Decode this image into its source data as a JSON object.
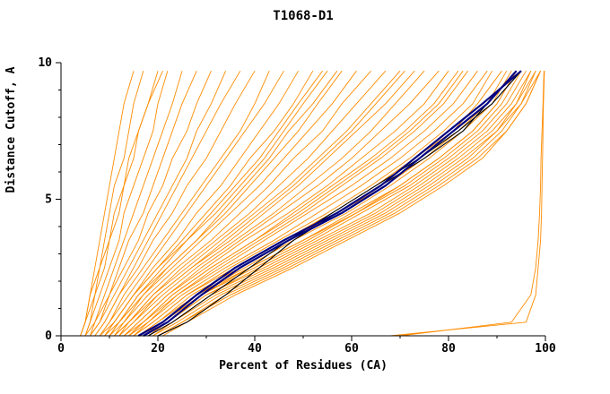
{
  "title": "T1068-D1",
  "chart_data": {
    "type": "line",
    "title": "T1068-D1",
    "xlabel": "Percent of Residues (CA)",
    "ylabel": "Distance Cutoff, A",
    "xlim": [
      0,
      100
    ],
    "ylim": [
      0,
      10
    ],
    "x_ticks": [
      0,
      20,
      40,
      60,
      80,
      100
    ],
    "y_ticks": [
      0,
      5,
      10
    ],
    "x_minor_step": 10,
    "y_minor_step": 1,
    "grid": false,
    "legend": "none",
    "colors": {
      "predictions": "#ff8c00",
      "highlight": "#000080",
      "reference": "#000000",
      "background": "#ffffff"
    },
    "y_anchors": [
      0,
      0.5,
      1.5,
      2.5,
      3.5,
      4.5,
      5.5,
      6.5,
      7.5,
      8.5,
      9.7
    ],
    "series": {
      "orange_curves": [
        [
          4,
          5,
          6,
          7,
          8,
          9,
          10,
          11,
          12,
          13,
          15
        ],
        [
          4,
          5,
          6,
          8,
          9,
          10,
          11,
          13,
          14,
          15,
          17
        ],
        [
          4,
          5,
          7,
          8,
          10,
          11,
          13,
          14,
          16,
          18,
          21
        ],
        [
          5,
          6,
          7,
          9,
          10,
          12,
          13,
          15,
          16,
          18,
          20
        ],
        [
          5,
          6,
          8,
          10,
          12,
          13,
          15,
          17,
          19,
          20,
          22
        ],
        [
          5,
          7,
          9,
          11,
          13,
          15,
          17,
          19,
          21,
          23,
          25
        ],
        [
          6,
          7,
          10,
          12,
          14,
          17,
          19,
          21,
          23,
          25,
          28
        ],
        [
          6,
          8,
          10,
          13,
          16,
          18,
          21,
          23,
          26,
          28,
          31
        ],
        [
          6,
          8,
          11,
          14,
          17,
          20,
          23,
          26,
          28,
          31,
          34
        ],
        [
          7,
          9,
          12,
          15,
          18,
          21,
          24,
          27,
          30,
          33,
          37
        ],
        [
          7,
          9,
          12,
          16,
          19,
          23,
          26,
          30,
          33,
          36,
          40
        ],
        [
          8,
          10,
          13,
          17,
          21,
          25,
          29,
          33,
          37,
          40,
          43
        ],
        [
          8,
          10,
          14,
          18,
          22,
          26,
          30,
          34,
          38,
          42,
          46
        ],
        [
          8,
          11,
          15,
          20,
          26,
          31,
          36,
          41,
          45,
          49,
          54
        ],
        [
          9,
          11,
          15,
          19,
          24,
          28,
          33,
          37,
          41,
          45,
          49
        ],
        [
          9,
          11,
          15,
          20,
          25,
          30,
          35,
          39,
          44,
          48,
          52
        ],
        [
          9,
          12,
          16,
          22,
          28,
          33,
          38,
          43,
          47,
          52,
          57
        ],
        [
          10,
          12,
          16,
          21,
          26,
          32,
          37,
          42,
          46,
          50,
          55
        ],
        [
          10,
          12,
          17,
          22,
          28,
          34,
          39,
          44,
          49,
          53,
          58
        ],
        [
          10,
          13,
          17,
          23,
          29,
          35,
          41,
          46,
          51,
          56,
          61
        ],
        [
          11,
          13,
          18,
          24,
          31,
          37,
          43,
          48,
          54,
          58,
          64
        ],
        [
          11,
          14,
          19,
          25,
          32,
          39,
          45,
          51,
          56,
          61,
          67
        ],
        [
          11,
          14,
          20,
          27,
          34,
          41,
          48,
          54,
          60,
          65,
          71
        ],
        [
          12,
          14,
          19,
          26,
          33,
          40,
          47,
          53,
          59,
          64,
          70
        ],
        [
          12,
          15,
          20,
          27,
          35,
          42,
          49,
          55,
          61,
          67,
          73
        ],
        [
          12,
          15,
          21,
          28,
          36,
          44,
          51,
          58,
          64,
          69,
          75
        ],
        [
          13,
          16,
          22,
          29,
          37,
          45,
          53,
          60,
          66,
          72,
          78
        ],
        [
          13,
          16,
          22,
          30,
          38,
          47,
          55,
          62,
          69,
          75,
          80
        ],
        [
          13,
          17,
          23,
          31,
          40,
          49,
          57,
          65,
          72,
          78,
          83
        ],
        [
          14,
          17,
          23,
          31,
          40,
          48,
          56,
          64,
          71,
          77,
          82
        ],
        [
          14,
          17,
          24,
          32,
          41,
          50,
          58,
          66,
          73,
          79,
          84
        ],
        [
          14,
          18,
          24,
          33,
          42,
          51,
          60,
          68,
          75,
          81,
          86
        ],
        [
          15,
          18,
          25,
          34,
          44,
          53,
          62,
          70,
          77,
          83,
          88
        ],
        [
          15,
          19,
          26,
          35,
          45,
          55,
          64,
          72,
          79,
          85,
          89
        ],
        [
          15,
          19,
          26,
          36,
          46,
          56,
          65,
          73,
          81,
          86,
          91
        ],
        [
          16,
          20,
          27,
          37,
          47,
          57,
          67,
          75,
          82,
          88,
          92
        ],
        [
          16,
          20,
          28,
          38,
          48,
          59,
          68,
          76,
          83,
          89,
          93
        ],
        [
          16,
          21,
          28,
          39,
          50,
          60,
          70,
          78,
          85,
          90,
          94
        ],
        [
          17,
          21,
          29,
          40,
          51,
          61,
          71,
          79,
          86,
          91,
          95
        ],
        [
          17,
          21,
          29,
          39,
          50,
          61,
          70,
          78,
          85,
          90,
          94
        ],
        [
          17,
          22,
          30,
          41,
          52,
          62,
          72,
          80,
          87,
          92,
          96
        ],
        [
          18,
          22,
          30,
          42,
          53,
          64,
          73,
          81,
          88,
          93,
          97
        ],
        [
          18,
          23,
          31,
          43,
          54,
          65,
          74,
          82,
          89,
          94,
          97
        ],
        [
          19,
          23,
          32,
          44,
          55,
          66,
          75,
          83,
          90,
          94,
          98
        ],
        [
          19,
          24,
          33,
          45,
          56,
          67,
          76,
          84,
          90,
          95,
          98
        ],
        [
          20,
          25,
          34,
          46,
          57,
          68,
          77,
          85,
          91,
          95,
          99
        ],
        [
          20,
          25,
          35,
          47,
          58,
          69,
          78,
          86,
          92,
          96,
          99
        ],
        [
          21,
          26,
          36,
          48,
          59,
          70,
          79,
          87,
          92,
          96,
          99
        ],
        [
          68,
          96,
          98,
          98.5,
          99,
          99.2,
          99.3,
          99.4,
          99.5,
          99.6,
          99.8
        ],
        [
          70,
          93,
          97,
          98,
          98.5,
          98.8,
          99,
          99.1,
          99.3,
          99.5,
          99.7
        ]
      ],
      "black_curves": [
        [
          20,
          26,
          34,
          41,
          48,
          57,
          66,
          75,
          83,
          88,
          94
        ],
        [
          18,
          23,
          31,
          39,
          47,
          56,
          65,
          74,
          82,
          89,
          95
        ]
      ],
      "blue_curves": [
        [
          16,
          21,
          28,
          36,
          46,
          57,
          66,
          73,
          80,
          87,
          95
        ],
        [
          17,
          22,
          29,
          37,
          47,
          58,
          67,
          74,
          81,
          88,
          94
        ]
      ]
    }
  }
}
